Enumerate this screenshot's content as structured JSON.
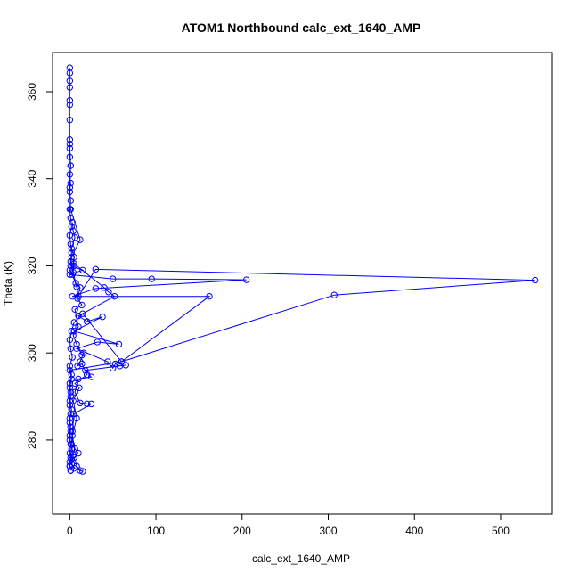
{
  "chart_data": {
    "type": "line",
    "title": "ATOM1 Northbound calc_ext_1640_AMP",
    "xlabel": "calc_ext_1640_AMP",
    "ylabel": "Theta (K)",
    "xlim": [
      -20,
      560
    ],
    "ylim": [
      263,
      369
    ],
    "x_ticks": [
      0,
      100,
      200,
      300,
      400,
      500
    ],
    "y_ticks": [
      280,
      300,
      320,
      340,
      360
    ],
    "grid": false,
    "marker": "open-circle",
    "color": "#0000ff",
    "series": [
      {
        "points": [
          [
            0,
            365.5
          ],
          [
            0,
            364.3
          ],
          [
            0,
            362.5
          ],
          [
            0,
            361.0
          ],
          [
            0,
            358.0
          ],
          [
            0,
            357.0
          ],
          [
            0,
            353.5
          ],
          [
            0,
            349.0
          ],
          [
            0,
            347.0
          ],
          [
            0,
            345.0
          ],
          [
            1,
            343.0
          ],
          [
            0,
            341.0
          ],
          [
            1,
            339.0
          ],
          [
            0,
            337.0
          ],
          [
            1,
            335.0
          ],
          [
            0,
            333.0
          ],
          [
            1,
            331.0
          ],
          [
            2,
            329.0
          ],
          [
            0,
            327.0
          ],
          [
            1,
            325.0
          ],
          [
            2,
            323.0
          ],
          [
            1,
            321.0
          ],
          [
            5,
            320.0
          ],
          [
            0,
            319.0
          ],
          [
            3,
            318.0
          ],
          [
            8,
            315.2
          ],
          [
            10,
            313.0
          ],
          [
            30,
            319.2
          ],
          [
            540,
            316.7
          ],
          [
            307,
            313.3
          ],
          [
            60,
            298.0
          ],
          [
            15,
            309.0
          ],
          [
            5,
            307.0
          ],
          [
            2,
            305.0
          ],
          [
            0,
            303.0
          ],
          [
            1,
            301.0
          ],
          [
            3,
            299.0
          ],
          [
            0,
            297.0
          ],
          [
            2,
            295.0
          ],
          [
            0,
            293.0
          ],
          [
            1,
            291.0
          ],
          [
            0,
            289.0
          ],
          [
            2,
            287.0
          ],
          [
            0,
            285.0
          ],
          [
            1,
            283.0
          ],
          [
            0,
            281.0
          ],
          [
            1,
            279.0
          ],
          [
            0,
            277.0
          ],
          [
            2,
            275.5
          ],
          [
            0,
            274.0
          ],
          [
            1,
            273.0
          ]
        ]
      },
      {
        "points": [
          [
            0,
            348.0
          ],
          [
            1,
            343.0
          ],
          [
            0,
            338.0
          ],
          [
            1,
            333.0
          ],
          [
            12,
            326.0
          ],
          [
            2,
            322.0
          ],
          [
            1,
            320.0
          ],
          [
            15,
            319.0
          ],
          [
            0,
            318.0
          ],
          [
            50,
            317.0
          ],
          [
            95,
            317.0
          ],
          [
            205,
            316.8
          ],
          [
            30,
            314.8
          ],
          [
            3,
            313.0
          ],
          [
            162,
            313.0
          ],
          [
            60,
            298.0
          ],
          [
            0,
            296.0
          ],
          [
            2,
            294.0
          ],
          [
            0,
            292.0
          ],
          [
            1,
            290.0
          ],
          [
            0,
            288.0
          ],
          [
            1,
            286.0
          ],
          [
            0,
            284.0
          ],
          [
            1,
            282.0
          ],
          [
            0,
            280.0
          ],
          [
            2,
            278.0
          ],
          [
            1,
            276.0
          ],
          [
            0,
            274.0
          ],
          [
            1,
            273.0
          ]
        ]
      },
      {
        "points": [
          [
            5,
            320.5
          ],
          [
            40,
            315.0
          ],
          [
            45,
            314.0
          ],
          [
            52,
            313.0
          ],
          [
            10,
            308.5
          ],
          [
            20,
            307.2
          ],
          [
            38,
            308.3
          ],
          [
            5,
            305.0
          ],
          [
            57,
            302.0
          ],
          [
            32,
            302.5
          ],
          [
            8,
            301.0
          ],
          [
            44,
            298.0
          ],
          [
            50,
            296.5
          ],
          [
            53,
            297.5
          ],
          [
            58,
            297.0
          ],
          [
            65,
            297.2
          ],
          [
            18,
            296.0
          ],
          [
            25,
            294.5
          ],
          [
            10,
            294.0
          ],
          [
            6,
            291.0
          ],
          [
            12,
            288.5
          ],
          [
            20,
            288.3
          ],
          [
            25,
            288.3
          ],
          [
            5,
            286.0
          ],
          [
            3,
            282.0
          ],
          [
            2,
            279.0
          ],
          [
            10,
            277.0
          ],
          [
            5,
            276.0
          ],
          [
            8,
            274.0
          ],
          [
            12,
            273.0
          ],
          [
            15,
            272.8
          ],
          [
            5,
            273.5
          ],
          [
            0,
            275.0
          ]
        ]
      },
      {
        "points": [
          [
            3,
            330.0
          ],
          [
            4,
            328.0
          ],
          [
            6,
            326.5
          ],
          [
            2,
            324.0
          ],
          [
            5,
            322.0
          ],
          [
            4,
            318.5
          ],
          [
            7,
            316.0
          ],
          [
            12,
            315.0
          ],
          [
            9,
            312.5
          ],
          [
            14,
            311.0
          ],
          [
            6,
            310.0
          ],
          [
            10,
            306.0
          ],
          [
            4,
            304.0
          ],
          [
            8,
            302.0
          ],
          [
            14,
            299.5
          ],
          [
            16,
            300.0
          ],
          [
            12,
            298.0
          ],
          [
            9,
            297.0
          ],
          [
            14,
            297.5
          ],
          [
            20,
            295.0
          ],
          [
            6,
            293.0
          ],
          [
            11,
            292.0
          ],
          [
            4,
            289.0
          ],
          [
            8,
            285.0
          ],
          [
            3,
            281.0
          ],
          [
            6,
            278.0
          ],
          [
            4,
            276.5
          ],
          [
            2,
            274.5
          ]
        ]
      }
    ]
  }
}
